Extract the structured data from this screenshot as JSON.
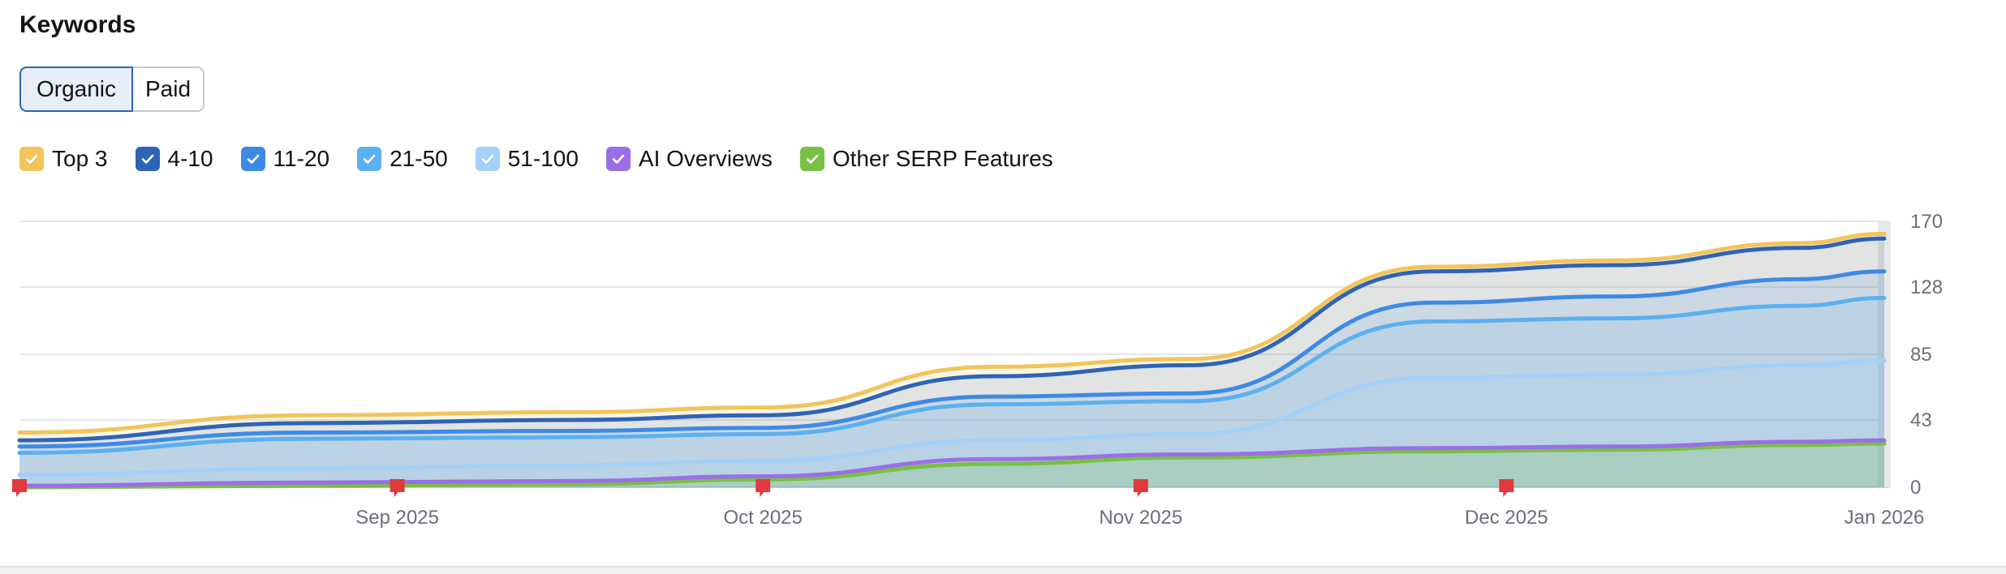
{
  "title": "Keywords",
  "tabs": [
    {
      "label": "Organic",
      "active": true
    },
    {
      "label": "Paid",
      "active": false
    }
  ],
  "legend": [
    {
      "label": "Top 3",
      "color": "#f2c45a",
      "checked": true
    },
    {
      "label": "4-10",
      "color": "#2e64b6",
      "checked": true
    },
    {
      "label": "11-20",
      "color": "#3d8ae6",
      "checked": true
    },
    {
      "label": "21-50",
      "color": "#5ab0f0",
      "checked": true
    },
    {
      "label": "51-100",
      "color": "#a3d1f9",
      "checked": true
    },
    {
      "label": "AI Overviews",
      "color": "#9b6ee6",
      "checked": true
    },
    {
      "label": "Other SERP Features",
      "color": "#78c043",
      "checked": true
    }
  ],
  "chart_data": {
    "type": "area",
    "x": [
      "2025-08-01",
      "2025-08-25",
      "2025-09-15",
      "2025-10-01",
      "2025-10-20",
      "2025-11-05",
      "2025-11-25",
      "2025-12-10",
      "2025-12-25",
      "2026-01-01"
    ],
    "x_tick_labels": [
      "Sep 2025",
      "Oct 2025",
      "Nov 2025",
      "Dec 2025",
      "Jan 2026"
    ],
    "y_tick_labels": [
      "0",
      "43",
      "85",
      "128",
      "170"
    ],
    "ylim": [
      0,
      170
    ],
    "grid": true,
    "stacked": false,
    "series": [
      {
        "name": "Top 3",
        "color": "#f2c45a",
        "values": [
          35,
          46,
          48,
          51,
          77,
          82,
          141,
          145,
          156,
          162
        ]
      },
      {
        "name": "4-10",
        "color": "#2e64b6",
        "values": [
          30,
          41,
          43,
          46,
          71,
          78,
          138,
          142,
          153,
          159
        ]
      },
      {
        "name": "11-20",
        "color": "#3d8ae6",
        "values": [
          26,
          35,
          36,
          38,
          58,
          60,
          118,
          122,
          133,
          138
        ]
      },
      {
        "name": "21-50",
        "color": "#5ab0f0",
        "values": [
          22,
          31,
          32,
          34,
          53,
          55,
          106,
          108,
          116,
          121
        ]
      },
      {
        "name": "51-100",
        "color": "#a3d1f9",
        "values": [
          8,
          12,
          14,
          17,
          30,
          34,
          70,
          72,
          78,
          81
        ]
      },
      {
        "name": "AI Overviews",
        "color": "#9b6ee6",
        "values": [
          1,
          3,
          4,
          7,
          18,
          21,
          25,
          26,
          29,
          30
        ]
      },
      {
        "name": "Other SERP Features",
        "color": "#78c043",
        "values": [
          0,
          1,
          2,
          5,
          15,
          19,
          23,
          24,
          27,
          28
        ]
      }
    ],
    "annotation_flags": [
      "2025-08-01",
      "2025-09-01",
      "2025-10-01",
      "2025-11-01",
      "2025-12-01"
    ]
  }
}
